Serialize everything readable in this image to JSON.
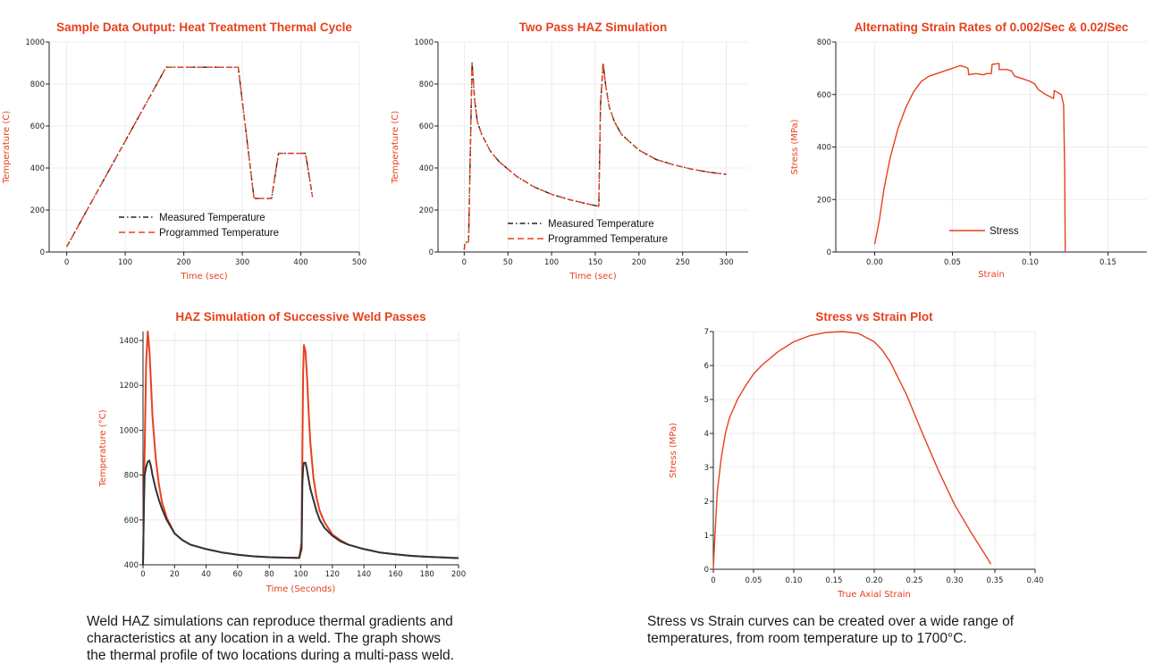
{
  "colors": {
    "accent": "#e8401c",
    "dark": "#222222",
    "grid": "#e6e6e6"
  },
  "captions": {
    "left": [
      "Weld HAZ simulations can reproduce thermal gradients and",
      "characteristics at any location in a weld. The graph shows",
      "the thermal profile of two locations during a multi-pass weld."
    ],
    "right": [
      "Stress vs Strain curves can be created over a wide range of",
      "temperatures, from room temperature up to 1700°C."
    ]
  },
  "chart_data": [
    {
      "type": "line",
      "title": "Sample Data Output: Heat Treatment Thermal Cycle",
      "xlabel": "Time (sec)",
      "ylabel": "Temperature (C)",
      "xlim": [
        -30,
        500
      ],
      "ylim": [
        0,
        1000
      ],
      "xticks": [
        0,
        100,
        200,
        300,
        400,
        500
      ],
      "yticks": [
        0,
        200,
        400,
        600,
        800,
        1000
      ],
      "grid": true,
      "legend": "center-left",
      "series": [
        {
          "name": "Measured Temperature",
          "style": "dashdot",
          "color": "#222222",
          "x": [
            0,
            170,
            293,
            320,
            350,
            362,
            408,
            420
          ],
          "y": [
            25,
            880,
            880,
            255,
            255,
            470,
            470,
            262
          ]
        },
        {
          "name": "Programmed Temperature",
          "style": "dashed",
          "color": "#e8401c",
          "x": [
            0,
            170,
            293,
            320,
            350,
            362,
            408,
            420
          ],
          "y": [
            25,
            880,
            880,
            255,
            255,
            470,
            470,
            262
          ]
        }
      ]
    },
    {
      "type": "line",
      "title": "Two Pass HAZ Simulation",
      "xlabel": "Time (sec)",
      "ylabel": "Temperature (C)",
      "xlim": [
        -30,
        325
      ],
      "ylim": [
        0,
        1000
      ],
      "xticks": [
        0,
        50,
        100,
        150,
        200,
        250,
        300
      ],
      "yticks": [
        0,
        200,
        400,
        600,
        800,
        1000
      ],
      "grid": true,
      "legend": "center",
      "series": [
        {
          "name": "Measured Temperature",
          "style": "dashdot",
          "color": "#222222",
          "x": [
            0,
            1,
            5,
            9,
            12,
            15,
            20,
            30,
            40,
            60,
            80,
            100,
            120,
            140,
            154,
            156,
            159,
            162,
            166,
            172,
            180,
            200,
            220,
            240,
            260,
            280,
            300
          ],
          "y": [
            10,
            45,
            48,
            900,
            720,
            620,
            560,
            480,
            430,
            360,
            310,
            275,
            250,
            230,
            218,
            700,
            900,
            790,
            690,
            620,
            560,
            485,
            440,
            415,
            395,
            380,
            370
          ]
        },
        {
          "name": "Programmed Temperature",
          "style": "dashed",
          "color": "#e8401c",
          "x": [
            0,
            1,
            5,
            9,
            12,
            15,
            20,
            30,
            40,
            60,
            80,
            100,
            120,
            140,
            154,
            156,
            159,
            162,
            166,
            172,
            180,
            200,
            220,
            240,
            260,
            280,
            300
          ],
          "y": [
            10,
            45,
            48,
            900,
            720,
            620,
            560,
            480,
            430,
            360,
            310,
            275,
            250,
            230,
            218,
            700,
            900,
            790,
            690,
            620,
            560,
            485,
            440,
            415,
            395,
            380,
            370
          ]
        }
      ]
    },
    {
      "type": "line",
      "title": "Alternating Strain Rates of 0.002/Sec & 0.02/Sec",
      "xlabel": "Strain",
      "ylabel": "Stress (MPa)",
      "xlim": [
        -0.025,
        0.175
      ],
      "ylim": [
        0,
        800
      ],
      "xticks": [
        0.0,
        0.05,
        0.1,
        0.15
      ],
      "xticklabels": [
        "0.00",
        "0.05",
        "0.10",
        "0.15"
      ],
      "yticks": [
        0,
        200,
        400,
        600,
        800
      ],
      "grid": true,
      "legend": "center-right",
      "series": [
        {
          "name": "Stress",
          "style": "solid",
          "color": "#e8401c",
          "x": [
            0,
            0.003,
            0.006,
            0.01,
            0.015,
            0.02,
            0.025,
            0.03,
            0.035,
            0.04,
            0.045,
            0.05,
            0.055,
            0.058,
            0.06,
            0.0605,
            0.065,
            0.07,
            0.072,
            0.075,
            0.0755,
            0.08,
            0.08,
            0.085,
            0.088,
            0.09,
            0.095,
            0.1,
            0.103,
            0.105,
            0.11,
            0.115,
            0.1155,
            0.12,
            0.1215,
            0.1222,
            0.1225
          ],
          "y": [
            30,
            120,
            240,
            360,
            470,
            550,
            610,
            650,
            670,
            680,
            690,
            700,
            710,
            705,
            700,
            675,
            680,
            675,
            680,
            680,
            715,
            718,
            695,
            695,
            690,
            670,
            660,
            650,
            640,
            620,
            600,
            585,
            615,
            600,
            560,
            300,
            0
          ]
        }
      ]
    },
    {
      "type": "line",
      "title": "HAZ Simulation of Successive Weld Passes",
      "xlabel": "Time (Seconds)",
      "ylabel": "Temperature (°C)",
      "xlim": [
        0,
        200
      ],
      "ylim": [
        400,
        1440
      ],
      "xticks": [
        0,
        20,
        40,
        60,
        80,
        100,
        120,
        140,
        160,
        180,
        200
      ],
      "yticks": [
        400,
        600,
        800,
        1000,
        1200,
        1400
      ],
      "grid": true,
      "series": [
        {
          "style": "solid",
          "color": "#e8401c",
          "x": [
            0,
            0.5,
            1,
            2,
            3,
            4,
            5,
            6,
            8,
            10,
            12,
            15,
            20,
            25,
            30,
            40,
            50,
            60,
            70,
            80,
            90,
            99,
            100.5,
            101,
            101.5,
            102,
            103,
            104,
            105,
            106,
            108,
            110,
            112,
            115,
            120,
            125,
            130,
            140,
            150,
            160,
            170,
            180,
            190,
            200
          ],
          "y": [
            400,
            660,
            900,
            1300,
            1440,
            1360,
            1220,
            1060,
            880,
            760,
            680,
            610,
            540,
            510,
            490,
            470,
            455,
            445,
            438,
            434,
            432,
            431,
            500,
            900,
            1250,
            1380,
            1350,
            1230,
            1080,
            950,
            790,
            700,
            640,
            590,
            535,
            510,
            490,
            470,
            455,
            447,
            440,
            436,
            433,
            430
          ]
        },
        {
          "style": "solid",
          "color": "#333333",
          "x": [
            0,
            0.5,
            1,
            2,
            3,
            4,
            5,
            6,
            8,
            10,
            12,
            15,
            20,
            25,
            30,
            40,
            50,
            60,
            70,
            80,
            90,
            99,
            100.5,
            101,
            101.5,
            102,
            103,
            104,
            105,
            106,
            108,
            110,
            112,
            115,
            120,
            125,
            130,
            140,
            150,
            160,
            170,
            180,
            190,
            200
          ],
          "y": [
            400,
            640,
            800,
            835,
            860,
            865,
            840,
            800,
            740,
            690,
            650,
            600,
            540,
            510,
            490,
            470,
            455,
            445,
            438,
            434,
            432,
            431,
            470,
            760,
            835,
            855,
            855,
            820,
            780,
            740,
            690,
            640,
            600,
            565,
            530,
            505,
            490,
            470,
            455,
            447,
            440,
            436,
            433,
            430
          ]
        }
      ]
    },
    {
      "type": "line",
      "title": "Stress vs Strain Plot",
      "xlabel": "True Axial Strain",
      "ylabel": "Stress (MPa)",
      "xlim": [
        0,
        0.4
      ],
      "ylim": [
        0,
        7
      ],
      "xticks": [
        0,
        0.05,
        0.1,
        0.15,
        0.2,
        0.25,
        0.3,
        0.35,
        0.4
      ],
      "xticklabels": [
        "0",
        "0.05",
        "0.10",
        "0.15",
        "0.20",
        "0.25",
        "0.30",
        "0.35",
        "0.40"
      ],
      "yticks": [
        0,
        1,
        2,
        3,
        4,
        5,
        6,
        7
      ],
      "grid": true,
      "series": [
        {
          "style": "solid",
          "color": "#e8401c",
          "x": [
            0,
            0.002,
            0.005,
            0.01,
            0.015,
            0.02,
            0.03,
            0.04,
            0.05,
            0.06,
            0.08,
            0.1,
            0.12,
            0.14,
            0.16,
            0.18,
            0.2,
            0.21,
            0.22,
            0.24,
            0.26,
            0.28,
            0.3,
            0.32,
            0.34,
            0.345
          ],
          "y": [
            0,
            1.0,
            2.3,
            3.3,
            4.0,
            4.45,
            5.0,
            5.4,
            5.75,
            6.0,
            6.4,
            6.7,
            6.88,
            6.97,
            7.0,
            6.95,
            6.7,
            6.45,
            6.1,
            5.15,
            4.0,
            2.9,
            1.9,
            1.1,
            0.35,
            0.15
          ]
        }
      ]
    }
  ]
}
